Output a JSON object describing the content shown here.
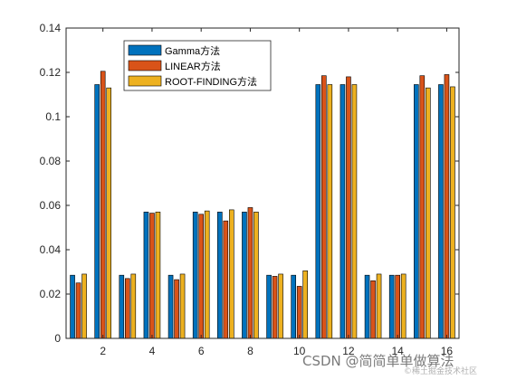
{
  "chart_data": {
    "type": "bar",
    "categories": [
      1,
      2,
      3,
      4,
      5,
      6,
      7,
      8,
      9,
      10,
      11,
      12,
      13,
      14,
      15,
      16
    ],
    "xticks": [
      "2",
      "4",
      "6",
      "8",
      "10",
      "12",
      "14",
      "16"
    ],
    "yticks": [
      "0",
      "0.02",
      "0.04",
      "0.06",
      "0.08",
      "0.1",
      "0.12",
      "0.14"
    ],
    "ylim": [
      0,
      0.14
    ],
    "xlim": [
      0.5,
      16.5
    ],
    "grid": false,
    "legend_position": "top-left",
    "series": [
      {
        "name": "Gamma方法",
        "color": "#0072BD",
        "values": [
          0.0285,
          0.1145,
          0.0285,
          0.057,
          0.0285,
          0.057,
          0.057,
          0.057,
          0.0285,
          0.0285,
          0.1145,
          0.1145,
          0.0285,
          0.0285,
          0.1145,
          0.1145
        ]
      },
      {
        "name": "LINEAR方法",
        "color": "#D95319",
        "values": [
          0.025,
          0.1205,
          0.027,
          0.0565,
          0.0265,
          0.056,
          0.053,
          0.059,
          0.028,
          0.0235,
          0.1185,
          0.118,
          0.026,
          0.0285,
          0.1185,
          0.119
        ]
      },
      {
        "name": "ROOT-FINDING方法",
        "color": "#EDB120",
        "values": [
          0.029,
          0.113,
          0.029,
          0.057,
          0.029,
          0.0575,
          0.058,
          0.057,
          0.029,
          0.0305,
          0.1145,
          0.1145,
          0.029,
          0.029,
          0.113,
          0.1135
        ]
      }
    ]
  },
  "watermark": {
    "text": "CSDN @简简单单做算法",
    "subtext": "©稀土掘金技术社区"
  }
}
